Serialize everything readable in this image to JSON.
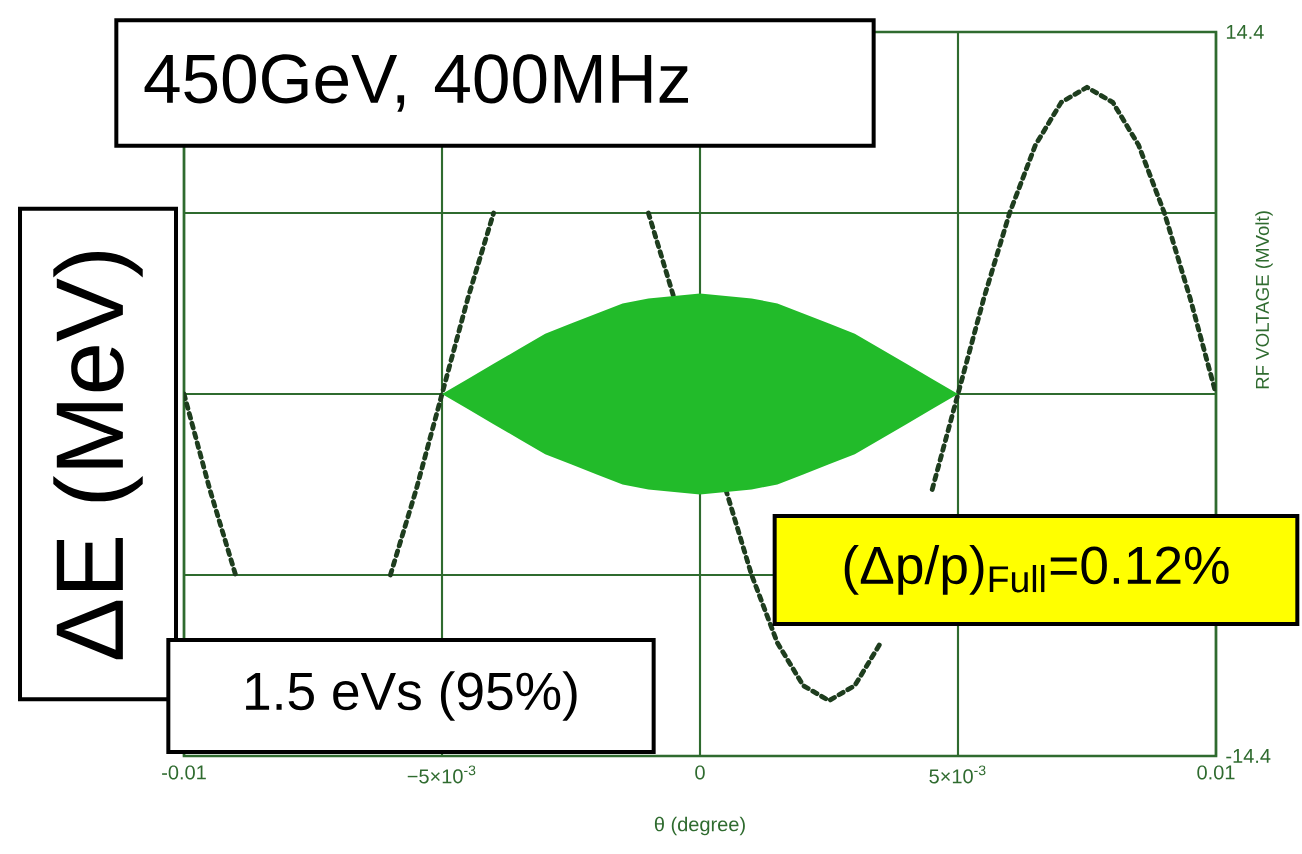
{
  "chart_data": {
    "type": "line",
    "title": "450GeV, 400MHz",
    "ylabel": "ΔE (MeV)",
    "y2label": "RF VOLTAGE (MVolt)",
    "xlabel": "θ (degree)",
    "annotations": [
      "1.5 eVs (95%)",
      "(Δp/p)$_{Full}$=0.12%"
    ],
    "xlim": [
      -0.01,
      0.01
    ],
    "xticks": [
      -0.01,
      {
        "value": -0.005,
        "label": "−5×10$^{-3}$"
      },
      0,
      {
        "value": 0.005,
        "label": "5×10$^{-3}$"
      },
      0.01
    ],
    "ylim": [
      -14.4,
      14.4
    ],
    "yticks": [
      -14.4,
      {
        "value": -7.2,
        "label": null
      },
      {
        "value": 0,
        "label": null
      },
      {
        "value": 7.2,
        "label": null
      },
      14.4
    ],
    "grid": true,
    "series": [
      {
        "color": "#1e3d1e",
        "line_style": "dotted",
        "x": [
          -0.01,
          -0.0095,
          -0.009,
          -0.0085,
          -0.008,
          -0.0075,
          -0.007,
          -0.0065,
          -0.006,
          -0.0055,
          -0.005,
          -0.0045,
          -0.004,
          -0.0035,
          -0.003,
          -0.0025,
          -0.002,
          -0.0015,
          -0.001,
          -0.0005,
          0,
          0.0005,
          0.001,
          0.0015,
          0.002,
          0.0025,
          0.003,
          0.0035,
          0.004,
          0.0045,
          0.005,
          0.0055,
          0.006,
          0.0065,
          0.007,
          0.0075,
          0.008,
          0.0085,
          0.009,
          0.0095,
          0.01
        ],
        "values": [
          0,
          -3.8,
          -7.2,
          null,
          null,
          null,
          null,
          null,
          -7.2,
          -3.8,
          0,
          3.8,
          7.2,
          null,
          null,
          null,
          null,
          null,
          7.2,
          3.8,
          null,
          -3.8,
          -7.2,
          -9.9,
          -11.6,
          -12.2,
          -11.6,
          -9.9,
          null,
          -3.8,
          0,
          3.8,
          7.2,
          9.9,
          11.6,
          12.2,
          11.6,
          9.9,
          7.2,
          3.8,
          0
        ]
      },
      {
        "type": "area",
        "color": "#22bb2a",
        "x": [
          -0.005,
          -0.0045,
          -0.004,
          -0.0035,
          -0.003,
          -0.0025,
          -0.002,
          -0.0015,
          -0.001,
          -0.0005,
          0,
          0.0005,
          0.001,
          0.0015,
          0.002,
          0.0025,
          0.003,
          0.0035,
          0.004,
          0.0045,
          0.005
        ],
        "values": [
          0,
          0.6,
          1.2,
          1.8,
          2.4,
          2.8,
          3.2,
          3.6,
          3.8,
          3.9,
          4.0,
          3.9,
          3.8,
          3.6,
          3.2,
          2.8,
          2.4,
          1.8,
          1.2,
          0.6,
          0
        ]
      },
      {
        "type": "area",
        "color": "#22bb2a",
        "x": [
          -0.005,
          -0.0045,
          -0.004,
          -0.0035,
          -0.003,
          -0.0025,
          -0.002,
          -0.0015,
          -0.001,
          -0.0005,
          0,
          0.0005,
          0.001,
          0.0015,
          0.002,
          0.0025,
          0.003,
          0.0035,
          0.004,
          0.0045,
          0.005
        ],
        "values": [
          0,
          -0.6,
          -1.2,
          -1.8,
          -2.4,
          -2.8,
          -3.2,
          -3.6,
          -3.8,
          -3.9,
          -4.0,
          -3.9,
          -3.8,
          -3.6,
          -3.2,
          -2.8,
          -2.4,
          -1.8,
          -1.2,
          -0.6,
          0
        ]
      }
    ]
  }
}
